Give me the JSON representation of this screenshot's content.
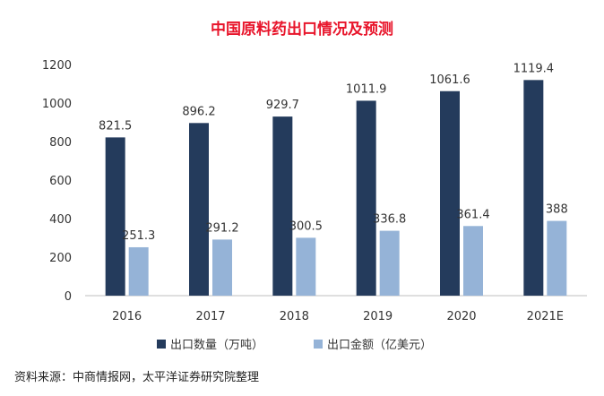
{
  "chart_data": {
    "type": "bar",
    "title": "中国原料药出口情况及预测",
    "categories": [
      "2016",
      "2017",
      "2018",
      "2019",
      "2020",
      "2021E"
    ],
    "series": [
      {
        "name": "出口数量（万吨）",
        "values": [
          821.5,
          896.2,
          929.7,
          1011.9,
          1061.6,
          1119.4
        ],
        "color": "#243b5c"
      },
      {
        "name": "出口金额（亿美元）",
        "values": [
          251.3,
          291.2,
          300.5,
          336.8,
          361.4,
          388
        ],
        "color": "#95b3d7"
      }
    ],
    "value_labels": [
      [
        "821.5",
        "896.2",
        "929.7",
        "1011.9",
        "1061.6",
        "1119.4"
      ],
      [
        "251.3",
        "291.2",
        "300.5",
        "336.8",
        "361.4",
        "388"
      ]
    ],
    "yticks": [
      "0",
      "200",
      "400",
      "600",
      "800",
      "1000",
      "1200"
    ],
    "ylim": [
      0,
      1200
    ],
    "xlabel": "",
    "ylabel": "",
    "legend_position": "bottom",
    "grid": false,
    "title_color": "#e8152b"
  },
  "source_note": "资料来源：中商情报网，太平洋证券研究院整理"
}
